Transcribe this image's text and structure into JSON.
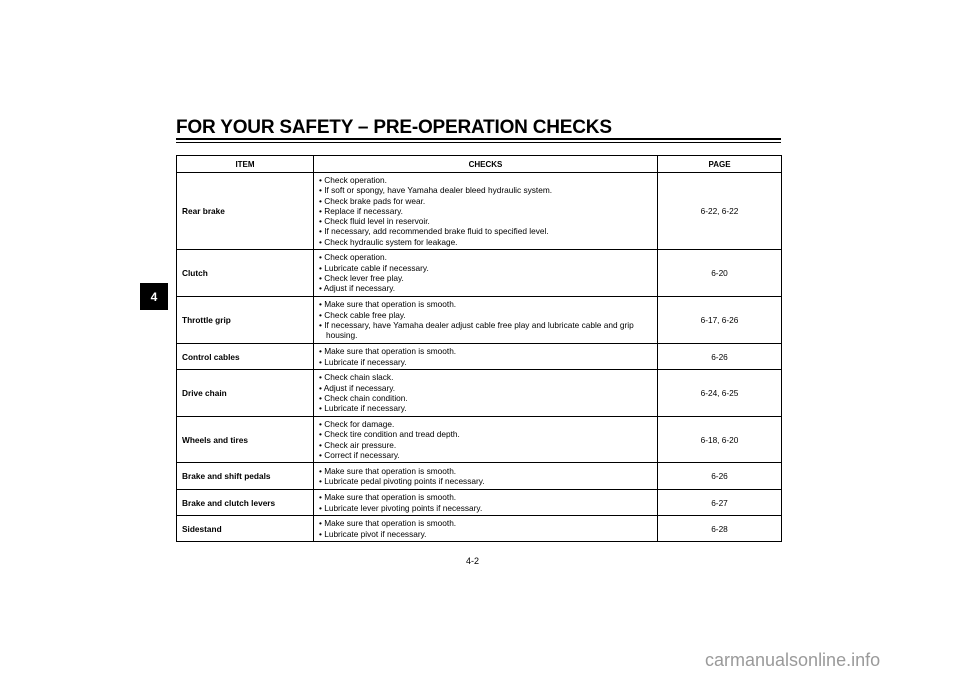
{
  "title": "FOR YOUR SAFETY – PRE-OPERATION CHECKS",
  "chapter_tab": "4",
  "table": {
    "headers": [
      "ITEM",
      "CHECKS",
      "PAGE"
    ],
    "rows": [
      {
        "item": "Rear brake",
        "checks": [
          "Check operation.",
          "If soft or spongy, have Yamaha dealer bleed hydraulic system.",
          "Check brake pads for wear.",
          "Replace if necessary.",
          "Check fluid level in reservoir.",
          "If necessary, add recommended brake fluid to specified level.",
          "Check hydraulic system for leakage."
        ],
        "page": "6-22, 6-22"
      },
      {
        "item": "Clutch",
        "checks": [
          "Check operation.",
          "Lubricate cable if necessary.",
          "Check lever free play.",
          "Adjust if necessary."
        ],
        "page": "6-20"
      },
      {
        "item": "Throttle grip",
        "checks": [
          "Make sure that operation is smooth.",
          "Check cable free play.",
          "If necessary, have Yamaha dealer adjust cable free play and lubricate cable and grip housing."
        ],
        "page": "6-17, 6-26"
      },
      {
        "item": "Control cables",
        "checks": [
          "Make sure that operation is smooth.",
          "Lubricate if necessary."
        ],
        "page": "6-26"
      },
      {
        "item": "Drive chain",
        "checks": [
          "Check chain slack.",
          "Adjust if necessary.",
          "Check chain condition.",
          "Lubricate if necessary."
        ],
        "page": "6-24, 6-25"
      },
      {
        "item": "Wheels and tires",
        "checks": [
          "Check for damage.",
          "Check tire condition and tread depth.",
          "Check air pressure.",
          "Correct if necessary."
        ],
        "page": "6-18, 6-20"
      },
      {
        "item": "Brake and shift pedals",
        "checks": [
          "Make sure that operation is smooth.",
          "Lubricate pedal pivoting points if necessary."
        ],
        "page": "6-26"
      },
      {
        "item": "Brake and clutch levers",
        "checks": [
          "Make sure that operation is smooth.",
          "Lubricate lever pivoting points if necessary."
        ],
        "page": "6-27"
      },
      {
        "item": "Sidestand",
        "checks": [
          "Make sure that operation is smooth.",
          "Lubricate pivot if necessary."
        ],
        "page": "6-28"
      }
    ]
  },
  "page_number": "4-2",
  "watermark": "carmanualsonline.info"
}
